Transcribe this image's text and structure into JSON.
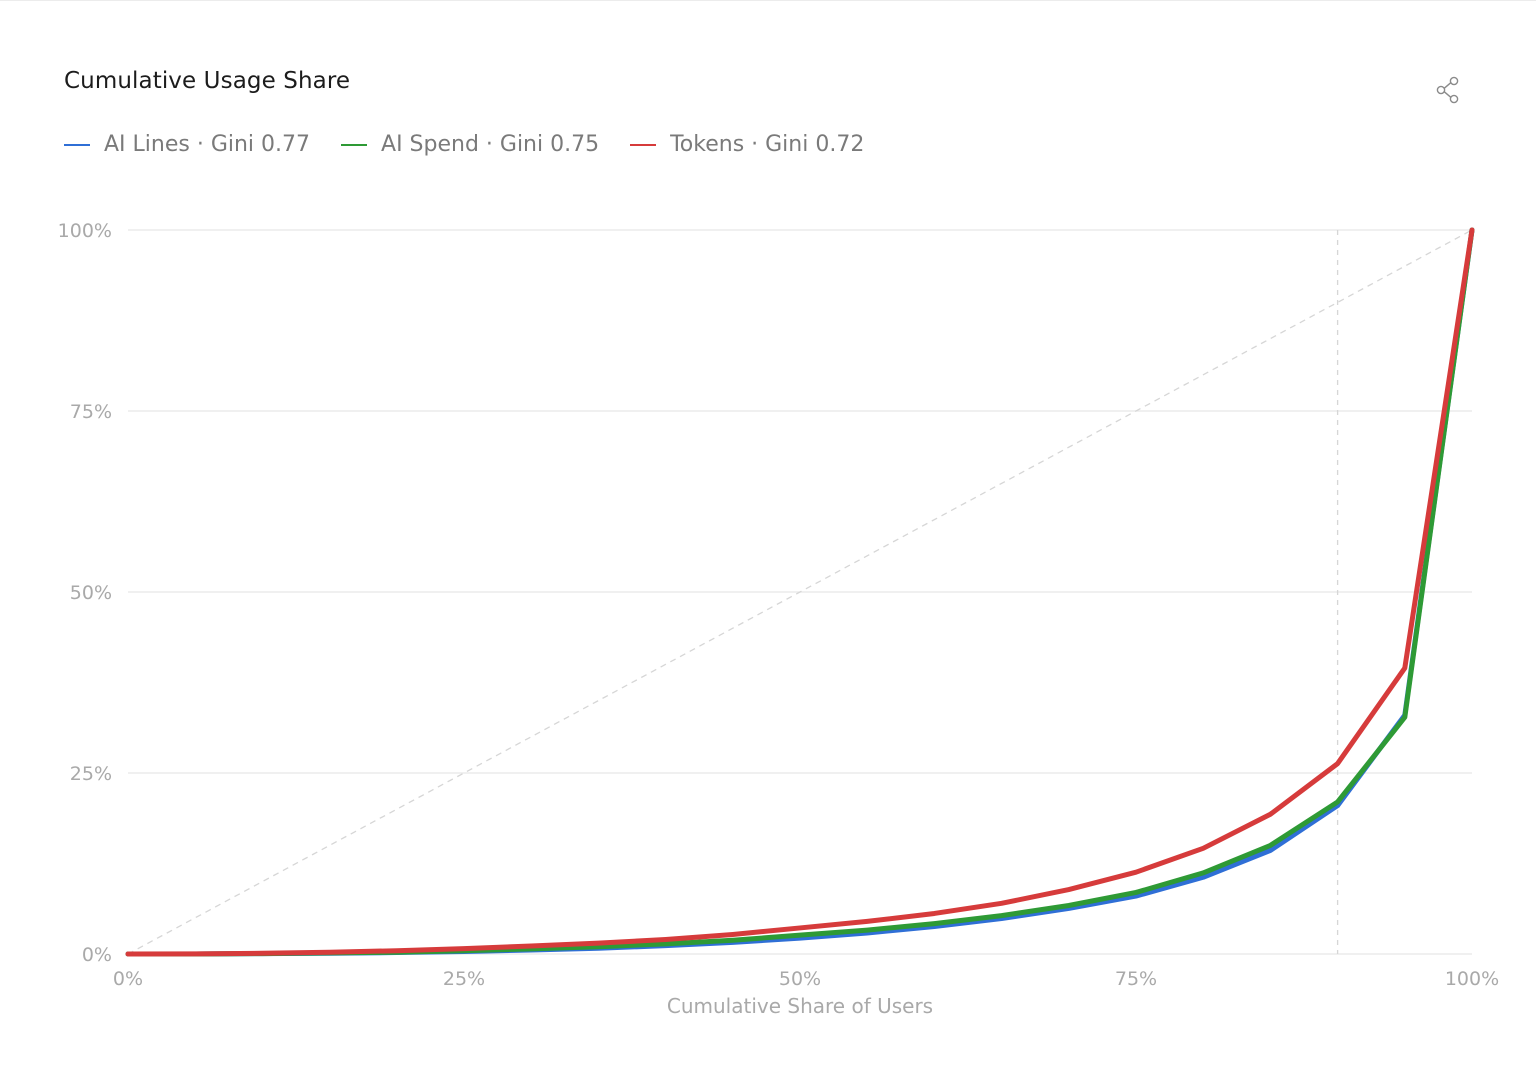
{
  "colors": {
    "background": "#ffffff",
    "grid": "#e6e6e6",
    "reference_line": "#d6d6d6",
    "text_muted": "#a9a9a9",
    "title": "#1c1c1c"
  },
  "header": {
    "title": "Cumulative Usage Share",
    "share_icon": "share-icon"
  },
  "chart_data": {
    "type": "line",
    "title": "Cumulative Usage Share",
    "xlabel": "Cumulative Share of Users",
    "ylabel": "",
    "xlim": [
      0,
      100
    ],
    "ylim": [
      0,
      100
    ],
    "x_ticks": [
      "0%",
      "25%",
      "50%",
      "75%",
      "100%"
    ],
    "y_ticks": [
      "0%",
      "25%",
      "50%",
      "75%",
      "100%"
    ],
    "x_tick_values": [
      0,
      25,
      50,
      75,
      100
    ],
    "y_tick_values": [
      0,
      25,
      50,
      75,
      100
    ],
    "grid": "horizontal",
    "legend_position": "top-left",
    "reference_line": {
      "from": [
        0,
        0
      ],
      "to": [
        100,
        100
      ],
      "style": "dashed"
    },
    "marker_line_x": 90,
    "x": [
      0,
      5,
      10,
      15,
      20,
      25,
      30,
      35,
      40,
      45,
      50,
      55,
      60,
      65,
      70,
      75,
      80,
      85,
      90,
      95,
      100
    ],
    "series": [
      {
        "name": "AI Lines · Gini 0.77",
        "color": "#2f6fd6",
        "values": [
          0,
          0,
          0.05,
          0.1,
          0.2,
          0.35,
          0.55,
          0.8,
          1.15,
          1.6,
          2.2,
          2.9,
          3.8,
          4.9,
          6.3,
          8.0,
          10.6,
          14.3,
          20.5,
          33.0,
          100
        ]
      },
      {
        "name": "AI Spend · Gini 0.75",
        "color": "#2e9a35",
        "values": [
          0,
          0,
          0.05,
          0.15,
          0.25,
          0.45,
          0.7,
          1.0,
          1.4,
          1.9,
          2.6,
          3.3,
          4.2,
          5.3,
          6.7,
          8.5,
          11.2,
          15.0,
          21.0,
          32.7,
          100
        ]
      },
      {
        "name": "Tokens · Gini 0.72",
        "color": "#d63b3b",
        "values": [
          0,
          0.02,
          0.1,
          0.25,
          0.45,
          0.75,
          1.1,
          1.5,
          2.0,
          2.7,
          3.6,
          4.5,
          5.6,
          7.0,
          8.9,
          11.3,
          14.6,
          19.3,
          26.3,
          39.5,
          100
        ]
      }
    ]
  }
}
